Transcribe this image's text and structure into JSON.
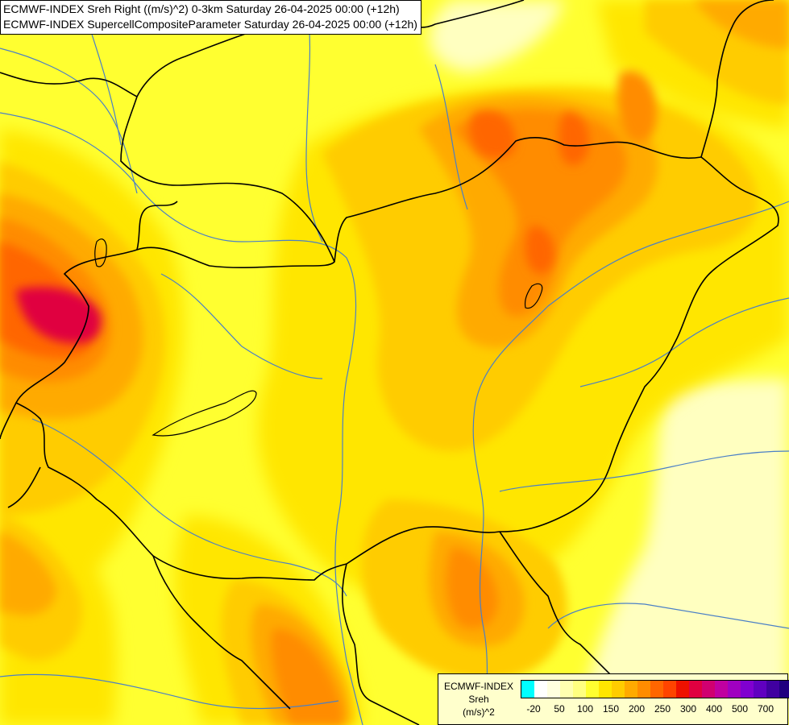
{
  "title": {
    "line1": "ECMWF-INDEX Sreh Right ((m/s)^2) 0-3km Saturday 26-04-2025 00:00 (+12h)",
    "line2": "ECMWF-INDEX SupercellCompositeParameter Saturday 26-04-2025 00:00 (+12h)"
  },
  "legend": {
    "model": "ECMWF-INDEX",
    "variable": "Sreh",
    "unit": "(m/s)^2",
    "colors": [
      "#00ffff",
      "#ffffff",
      "#ffffe0",
      "#ffffb0",
      "#ffff80",
      "#ffff30",
      "#ffe600",
      "#ffcc00",
      "#ffaa00",
      "#ff8c00",
      "#ff6600",
      "#ff4400",
      "#ee1100",
      "#e00040",
      "#d00070",
      "#c000a0",
      "#a000c0",
      "#8000d0",
      "#6000c0",
      "#4000a0",
      "#200080"
    ],
    "ticks": [
      "-20",
      "50",
      "100",
      "150",
      "200",
      "250",
      "300",
      "400",
      "500",
      "700"
    ]
  },
  "map": {
    "field_colors": {
      "pale": "#ffffc0",
      "light_yellow": "#ffff80",
      "yellow": "#ffff30",
      "gold": "#ffe600",
      "amber": "#ffcc00",
      "orange": "#ffaa00",
      "dark_orange": "#ff8c00",
      "red_orange": "#ff6600",
      "red": "#ff4400",
      "crimson": "#e00040"
    },
    "border_color": "#000000",
    "river_color": "#4a7fc6"
  }
}
